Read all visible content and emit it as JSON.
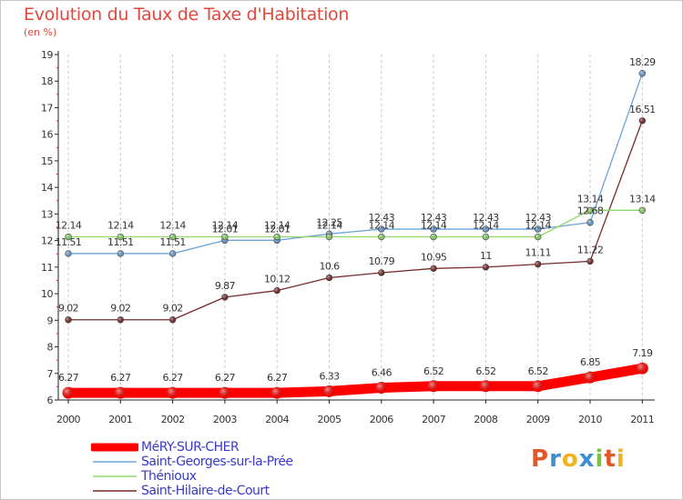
{
  "chart_data": {
    "type": "line",
    "title": "Evolution du Taux de Taxe d'Habitation",
    "subtitle": "(en %)",
    "x": [
      "2000",
      "2001",
      "2002",
      "2003",
      "2004",
      "2005",
      "2006",
      "2007",
      "2008",
      "2009",
      "2010",
      "2011"
    ],
    "ylim": [
      6,
      19
    ],
    "yticks": [
      6,
      7,
      8,
      9,
      10,
      11,
      12,
      13,
      14,
      15,
      16,
      17,
      18,
      19
    ],
    "grid": "vertical dashed",
    "legend_position": "bottom-left",
    "series": [
      {
        "name": "MéRY-SUR-CHER",
        "color": "#ff0000",
        "values": [
          6.27,
          6.27,
          6.27,
          6.27,
          6.27,
          6.33,
          6.46,
          6.52,
          6.52,
          6.52,
          6.85,
          7.19
        ],
        "labels": [
          "6.27",
          "6.27",
          "6.27",
          "6.27",
          "6.27",
          "6.33",
          "6.46",
          "6.52",
          "6.52",
          "6.52",
          "6.85",
          "7.19"
        ]
      },
      {
        "name": "Saint-Georges-sur-la-Prée",
        "color": "#6ea3d8",
        "values": [
          11.51,
          11.51,
          11.51,
          12.01,
          12.01,
          12.25,
          12.43,
          12.43,
          12.43,
          12.43,
          12.68,
          18.29
        ],
        "labels": [
          "11.51",
          "11.51",
          "11.51",
          "12.01",
          "12.01",
          "12.25",
          "12.43",
          "12.43",
          "12.43",
          "12.43",
          "12.68",
          "18.29"
        ]
      },
      {
        "name": "Thénioux",
        "color": "#8fd86a",
        "values": [
          12.14,
          12.14,
          12.14,
          12.14,
          12.14,
          12.14,
          12.14,
          12.14,
          12.14,
          12.14,
          13.14,
          13.14
        ],
        "labels": [
          "12.14",
          "12.14",
          "12.14",
          "12.14",
          "12.14",
          "12.14",
          "12.14",
          "12.14",
          "12.14",
          "12.14",
          "13.14",
          "13.14"
        ]
      },
      {
        "name": "Saint-Hilaire-de-Court",
        "color": "#7a2a2a",
        "values": [
          9.02,
          9.02,
          9.02,
          9.87,
          10.12,
          10.6,
          10.79,
          10.95,
          11,
          11.11,
          11.22,
          16.51
        ],
        "labels": [
          "9.02",
          "9.02",
          "9.02",
          "9.87",
          "10.12",
          "10.6",
          "10.79",
          "10.95",
          "11",
          "11.11",
          "11.22",
          "16.51"
        ]
      }
    ]
  },
  "logo": {
    "letters": [
      "P",
      "r",
      "o",
      "x",
      "i",
      "t",
      "i"
    ],
    "colors": [
      "#e2582c",
      "#3f8fd0",
      "#f0b21e",
      "#3f8fd0",
      "#7cc243",
      "#e2582c",
      "#f0b21e"
    ]
  }
}
